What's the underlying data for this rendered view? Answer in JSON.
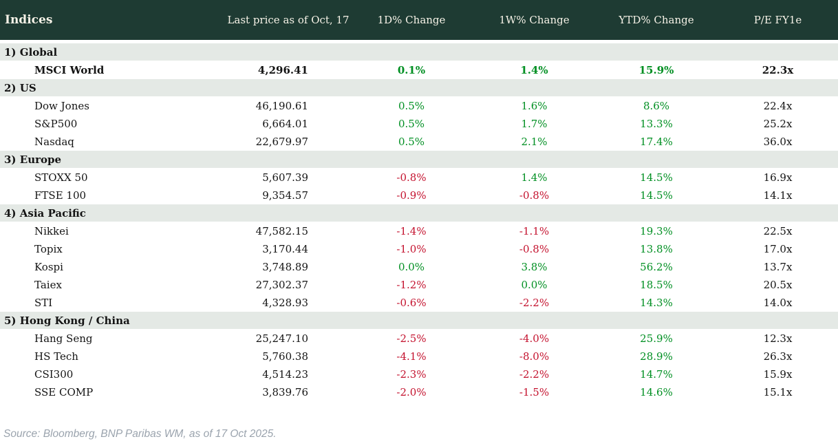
{
  "chart_data": {
    "type": "table",
    "title": "Indices",
    "columns": [
      "Last price as of Oct, 17",
      "1D% Change",
      "1W% Change",
      "YTD% Change",
      "P/E FY1e"
    ],
    "sections": [
      {
        "label": "1) Global",
        "rows": [
          {
            "name": "MSCI World",
            "price": "4,296.41",
            "d1": "0.1%",
            "w1": "1.4%",
            "ytd": "15.9%",
            "pe": "22.3x",
            "bold": true
          }
        ]
      },
      {
        "label": "2) US",
        "rows": [
          {
            "name": "Dow Jones",
            "price": "46,190.61",
            "d1": "0.5%",
            "w1": "1.6%",
            "ytd": "8.6%",
            "pe": "22.4x"
          },
          {
            "name": "S&P500",
            "price": "6,664.01",
            "d1": "0.5%",
            "w1": "1.7%",
            "ytd": "13.3%",
            "pe": "25.2x"
          },
          {
            "name": "Nasdaq",
            "price": "22,679.97",
            "d1": "0.5%",
            "w1": "2.1%",
            "ytd": "17.4%",
            "pe": "36.0x"
          }
        ]
      },
      {
        "label": "3) Europe",
        "rows": [
          {
            "name": "STOXX 50",
            "price": "5,607.39",
            "d1": "-0.8%",
            "w1": "1.4%",
            "ytd": "14.5%",
            "pe": "16.9x"
          },
          {
            "name": "FTSE 100",
            "price": "9,354.57",
            "d1": "-0.9%",
            "w1": "-0.8%",
            "ytd": "14.5%",
            "pe": "14.1x"
          }
        ]
      },
      {
        "label": "4) Asia Pacific",
        "rows": [
          {
            "name": "Nikkei",
            "price": "47,582.15",
            "d1": "-1.4%",
            "w1": "-1.1%",
            "ytd": "19.3%",
            "pe": "22.5x"
          },
          {
            "name": "Topix",
            "price": "3,170.44",
            "d1": "-1.0%",
            "w1": "-0.8%",
            "ytd": "13.8%",
            "pe": "17.0x"
          },
          {
            "name": "Kospi",
            "price": "3,748.89",
            "d1": "0.0%",
            "w1": "3.8%",
            "ytd": "56.2%",
            "pe": "13.7x"
          },
          {
            "name": "Taiex",
            "price": "27,302.37",
            "d1": "-1.2%",
            "w1": "0.0%",
            "ytd": "18.5%",
            "pe": "20.5x"
          },
          {
            "name": "STI",
            "price": "4,328.93",
            "d1": "-0.6%",
            "w1": "-2.2%",
            "ytd": "14.3%",
            "pe": "14.0x"
          }
        ]
      },
      {
        "label": "5) Hong Kong / China",
        "rows": [
          {
            "name": "Hang Seng",
            "price": "25,247.10",
            "d1": "-2.5%",
            "w1": "-4.0%",
            "ytd": "25.9%",
            "pe": "12.3x"
          },
          {
            "name": "HS Tech",
            "price": "5,760.38",
            "d1": "-4.1%",
            "w1": "-8.0%",
            "ytd": "28.9%",
            "pe": "26.3x"
          },
          {
            "name": "CSI300",
            "price": "4,514.23",
            "d1": "-2.3%",
            "w1": "-2.2%",
            "ytd": "14.7%",
            "pe": "15.9x"
          },
          {
            "name": "SSE COMP",
            "price": "3,839.76",
            "d1": "-2.0%",
            "w1": "-1.5%",
            "ytd": "14.6%",
            "pe": "15.1x"
          }
        ]
      }
    ]
  },
  "footer": {
    "source": "Source: Bloomberg, BNP Paribas WM, as of 17 Oct 2025."
  },
  "colors": {
    "header_bg": "#1e3b33",
    "header_text": "#f6f2e7",
    "band_bg": "#e4e9e5",
    "positive": "#008f22",
    "negative": "#c4122e",
    "source_text": "#9aa3ad"
  }
}
